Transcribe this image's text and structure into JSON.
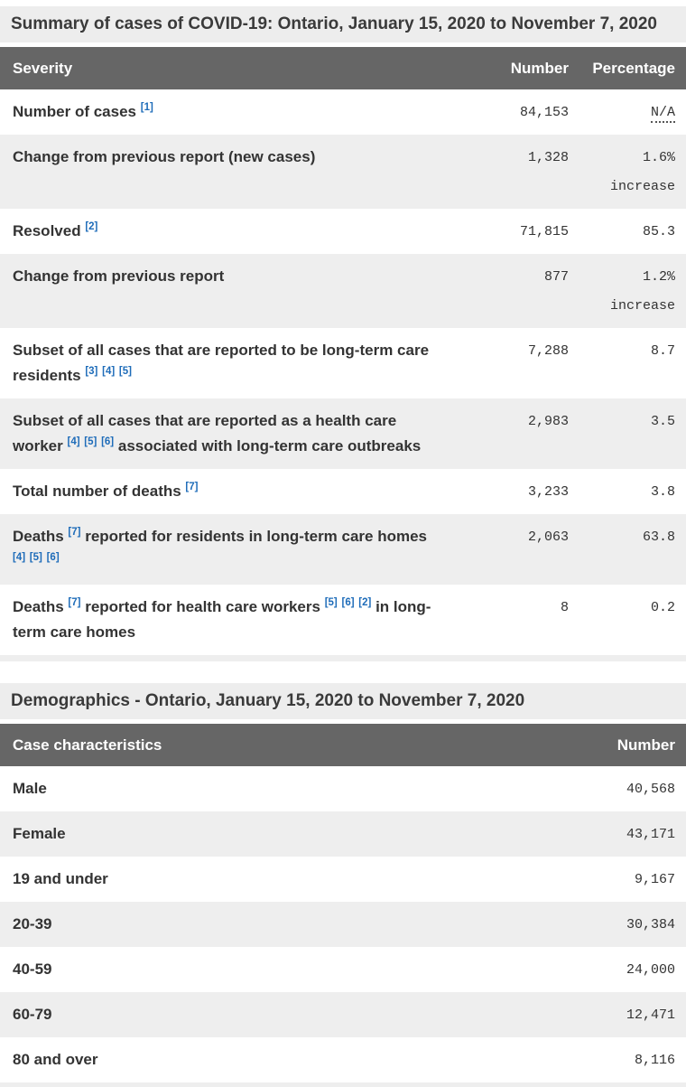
{
  "colors": {
    "header_bg": "#666666",
    "header_text": "#ffffff",
    "title_bar_bg": "#ededed",
    "row_alt_bg": "#eeeeee",
    "body_text": "#333333",
    "footnote_link": "#1e6cb9"
  },
  "tables": [
    {
      "title": "Summary of cases of COVID-19: Ontario, January 15, 2020 to November 7, 2020",
      "columns": [
        "Severity",
        "Number",
        "Percentage"
      ],
      "rows": [
        {
          "label": [
            {
              "t": "Number of cases "
            },
            {
              "fn": "1"
            }
          ],
          "number": "84,153",
          "pct": "N/A",
          "abbr": true
        },
        {
          "label": [
            {
              "t": "Change from previous report (new cases)"
            }
          ],
          "number": "1,328",
          "pct": "1.6%",
          "note": "increase"
        },
        {
          "label": [
            {
              "t": "Resolved "
            },
            {
              "fn": "2"
            }
          ],
          "number": "71,815",
          "pct": "85.3"
        },
        {
          "label": [
            {
              "t": "Change from previous report"
            }
          ],
          "number": "877",
          "pct": "1.2%",
          "note": "increase"
        },
        {
          "label": [
            {
              "t": "Subset of all cases that are reported to be long-term care residents "
            },
            {
              "fn": "3"
            },
            {
              "fn": "4"
            },
            {
              "fn": "5"
            }
          ],
          "number": "7,288",
          "pct": "8.7"
        },
        {
          "label": [
            {
              "t": "Subset of all cases that are reported as a health care worker "
            },
            {
              "fn": "4"
            },
            {
              "fn": "5"
            },
            {
              "fn": "6"
            },
            {
              "t": " associated with long-term care outbreaks"
            }
          ],
          "number": "2,983",
          "pct": "3.5"
        },
        {
          "label": [
            {
              "t": "Total number of deaths "
            },
            {
              "fn": "7"
            }
          ],
          "number": "3,233",
          "pct": "3.8"
        },
        {
          "label": [
            {
              "t": "Deaths "
            },
            {
              "fn": "7"
            },
            {
              "t": " reported for residents in long-term care homes "
            },
            {
              "fn": "4"
            },
            {
              "fn": "5"
            },
            {
              "fn": "6"
            }
          ],
          "number": "2,063",
          "pct": "63.8"
        },
        {
          "label": [
            {
              "t": "Deaths "
            },
            {
              "fn": "7"
            },
            {
              "t": " reported for health care workers "
            },
            {
              "fn": "5"
            },
            {
              "fn": "6"
            },
            {
              "fn": "2"
            },
            {
              "t": " in long-term care homes"
            }
          ],
          "number": "8",
          "pct": "0.2"
        }
      ]
    },
    {
      "title": "Demographics - Ontario, January 15, 2020 to November 7, 2020",
      "columns": [
        "Case characteristics",
        "Number"
      ],
      "rows": [
        {
          "label": [
            {
              "t": "Male"
            }
          ],
          "number": "40,568"
        },
        {
          "label": [
            {
              "t": "Female"
            }
          ],
          "number": "43,171"
        },
        {
          "label": [
            {
              "t": "19 and under"
            }
          ],
          "number": "9,167"
        },
        {
          "label": [
            {
              "t": "20-39"
            }
          ],
          "number": "30,384"
        },
        {
          "label": [
            {
              "t": "40-59"
            }
          ],
          "number": "24,000"
        },
        {
          "label": [
            {
              "t": "60-79"
            }
          ],
          "number": "12,471"
        },
        {
          "label": [
            {
              "t": "80 and over"
            }
          ],
          "number": "8,116"
        }
      ]
    }
  ]
}
